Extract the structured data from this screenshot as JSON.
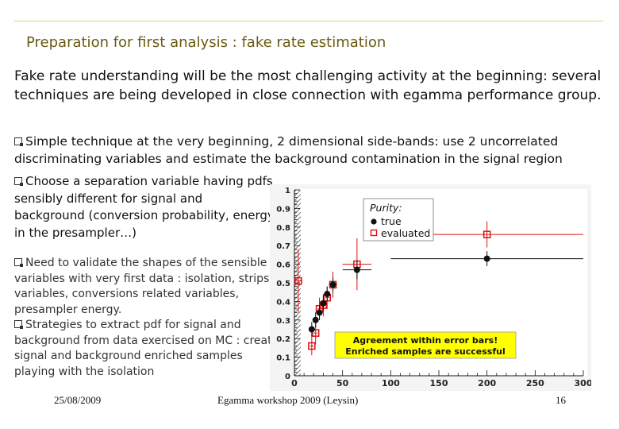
{
  "slide": {
    "title": "Preparation for first analysis : fake rate estimation",
    "intro": "Fake rate understanding will be the most challenging activity at the beginning: several techniques are being developed in close connection with egamma performance group.",
    "bullet1": "Simple technique at the very beginning, 2 dimensional side-bands: use 2 uncorrelated discriminating variables and estimate the background contamination in the signal region",
    "bullet2": "Choose a separation variable having pdfs sensibly different for signal and background (conversion probability, energy in the presampler…)",
    "bullet3": "Need to validate the shapes of the sensible variables with very first data : isolation, strips variables, conversions related variables, presampler energy.",
    "bullet4": "Strategies to extract pdf for signal and background from data exercised on MC : create signal and background enriched samples playing with the isolation"
  },
  "footer": {
    "date": "25/08/2009",
    "event": "Egamma workshop 2009 (Leysin)",
    "page": "16"
  },
  "colors": {
    "title": "#6b5a12",
    "rule": "#e2cf7a",
    "evaluated": "#dd1111",
    "true": "#111111",
    "box": "#ffff00"
  },
  "chart_data": {
    "type": "scatter",
    "xlim": [
      0,
      300
    ],
    "ylim": [
      0,
      1
    ],
    "x_ticks": [
      "0",
      "50",
      "100",
      "150",
      "200",
      "250",
      "300"
    ],
    "y_ticks": [
      "0",
      "0.1",
      "0.2",
      "0.3",
      "0.4",
      "0.5",
      "0.6",
      "0.7",
      "0.8",
      "0.9",
      "1"
    ],
    "legend": {
      "title": "Purity:",
      "entries": [
        "true",
        "evaluated"
      ],
      "placement": "top-left"
    },
    "annotation": [
      "Agreement within error bars!",
      "Enriched samples are successful"
    ],
    "series": [
      {
        "name": "true",
        "marker": "filled-circle",
        "x": [
          18,
          22,
          26,
          30,
          34,
          40,
          65,
          200
        ],
        "y": [
          0.25,
          0.3,
          0.34,
          0.39,
          0.44,
          0.49,
          0.57,
          0.63
        ],
        "xerr": [
          2,
          2,
          2,
          2,
          2,
          4,
          15,
          100
        ],
        "yerr": [
          0.04,
          0.04,
          0.04,
          0.04,
          0.04,
          0.04,
          0.05,
          0.04
        ]
      },
      {
        "name": "evaluated",
        "marker": "open-square",
        "x": [
          4,
          18,
          22,
          26,
          30,
          34,
          40,
          65,
          200
        ],
        "y": [
          0.51,
          0.16,
          0.23,
          0.36,
          0.38,
          0.42,
          0.49,
          0.6,
          0.76
        ],
        "xerr": [
          4,
          2,
          2,
          2,
          2,
          2,
          4,
          15,
          100
        ],
        "yerr": [
          0.17,
          0.05,
          0.06,
          0.06,
          0.06,
          0.06,
          0.07,
          0.14,
          0.07
        ]
      }
    ]
  }
}
